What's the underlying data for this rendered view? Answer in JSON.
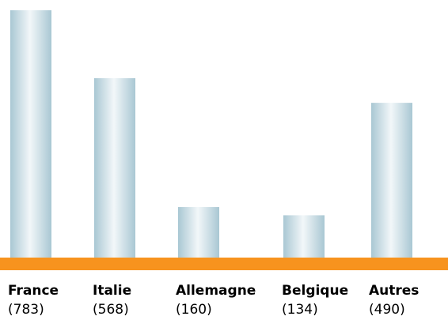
{
  "chart_data": {
    "type": "bar",
    "categories": [
      "France",
      "Italie",
      "Allemagne",
      "Belgique",
      "Autres"
    ],
    "values": [
      783,
      568,
      160,
      134,
      490
    ],
    "value_labels": [
      "(783)",
      "(568)",
      "(160)",
      "(134)",
      "(490)"
    ],
    "title": "",
    "xlabel": "",
    "ylabel": "",
    "ylim": [
      0,
      783
    ],
    "grid": false,
    "legend": "none"
  },
  "colors": {
    "baseline": "#f7931e",
    "bar_edge": "#a9c7d3",
    "bar_center": "#f2f7f9",
    "text": "#000000"
  }
}
